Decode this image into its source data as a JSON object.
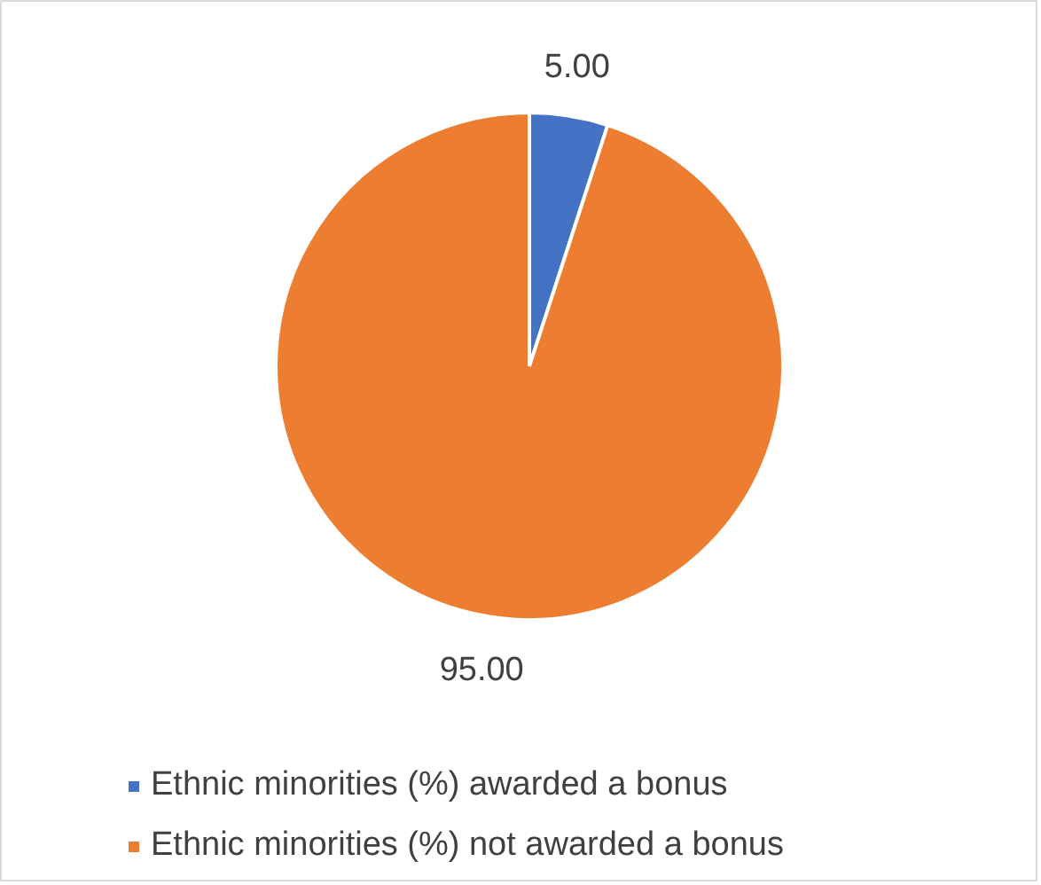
{
  "chart_data": {
    "type": "pie",
    "categories": [
      "Ethnic minorities (%) awarded a bonus",
      "Ethnic minorities (%) not awarded a bonus"
    ],
    "values": [
      5,
      95
    ],
    "colors": [
      "#4472c4",
      "#ed7d31"
    ],
    "value_labels": [
      "5.00",
      "95.00"
    ],
    "legend": "bottom"
  }
}
